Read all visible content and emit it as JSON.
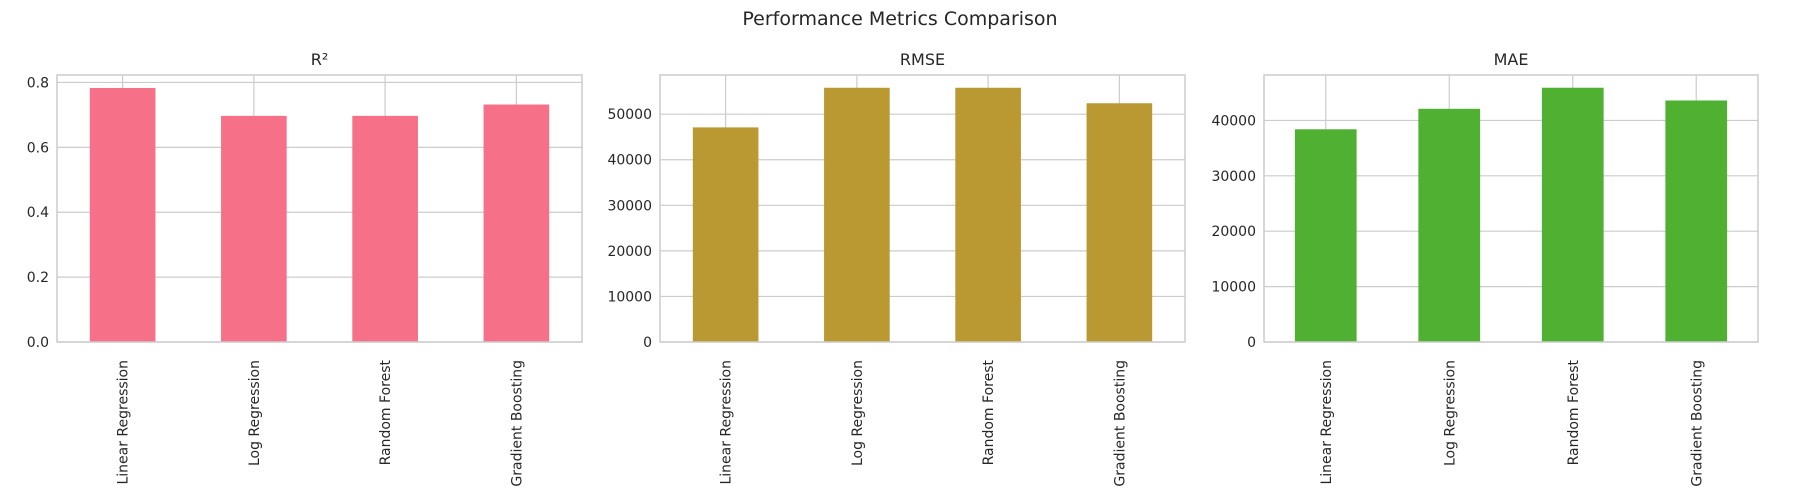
{
  "figure": {
    "suptitle": "Performance Metrics Comparison"
  },
  "chart_data": [
    {
      "type": "bar",
      "title": "R²",
      "xlabel": "",
      "ylabel": "",
      "categories": [
        "Linear Regression",
        "Log Regression",
        "Random Forest",
        "Gradient Boosting"
      ],
      "values": [
        0.783,
        0.697,
        0.697,
        0.732
      ],
      "ylim": [
        0,
        0.823
      ],
      "yticks": [
        0.0,
        0.2,
        0.4,
        0.6,
        0.8
      ],
      "ytick_labels": [
        "0.0",
        "0.2",
        "0.4",
        "0.6",
        "0.8"
      ],
      "color": "#f67088",
      "grid": true
    },
    {
      "type": "bar",
      "title": "RMSE",
      "xlabel": "",
      "ylabel": "",
      "categories": [
        "Linear Regression",
        "Log Regression",
        "Random Forest",
        "Gradient Boosting"
      ],
      "values": [
        47100,
        55800,
        55800,
        52400
      ],
      "ylim": [
        0,
        58600
      ],
      "yticks": [
        0,
        10000,
        20000,
        30000,
        40000,
        50000
      ],
      "ytick_labels": [
        "0",
        "10000",
        "20000",
        "30000",
        "40000",
        "50000"
      ],
      "color": "#ba9832",
      "grid": true
    },
    {
      "type": "bar",
      "title": "MAE",
      "xlabel": "",
      "ylabel": "",
      "categories": [
        "Linear Regression",
        "Log Regression",
        "Random Forest",
        "Gradient Boosting"
      ],
      "values": [
        38400,
        42100,
        45900,
        43600
      ],
      "ylim": [
        0,
        48200
      ],
      "yticks": [
        0,
        10000,
        20000,
        30000,
        40000
      ],
      "ytick_labels": [
        "0",
        "10000",
        "20000",
        "30000",
        "40000"
      ],
      "color": "#4fb032",
      "grid": true
    }
  ]
}
